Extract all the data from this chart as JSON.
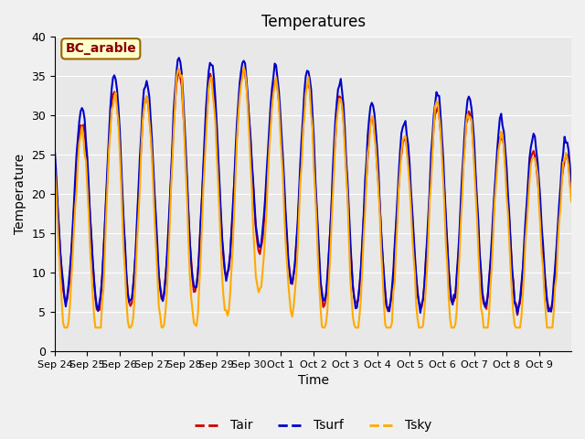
{
  "title": "Temperatures",
  "xlabel": "Time",
  "ylabel": "Temperature",
  "annotation_text": "BC_arable",
  "annotation_facecolor": "#ffffcc",
  "annotation_edgecolor": "#996600",
  "annotation_textcolor": "#8b0000",
  "line_colors": {
    "Tair": "#cc0000",
    "Tsurf": "#0000cc",
    "Tsky": "#ffaa00"
  },
  "line_width": 1.5,
  "ylim": [
    0,
    40
  ],
  "bg_color": "#e8e8e8",
  "fig_color": "#f0f0f0",
  "x_tick_labels": [
    "Sep 24",
    "Sep 25",
    "Sep 26",
    "Sep 27",
    "Sep 28",
    "Sep 29",
    "Sep 30",
    "Oct 1",
    "Oct 2",
    "Oct 3",
    "Oct 4",
    "Oct 5",
    "Oct 6",
    "Oct 7",
    "Oct 8",
    "Oct 9"
  ],
  "y_tick_vals": [
    0,
    5,
    10,
    15,
    20,
    25,
    30,
    35,
    40
  ],
  "legend_labels": [
    "Tair",
    "Tsurf",
    "Tsky"
  ],
  "legend_colors": [
    "#cc0000",
    "#0000cc",
    "#ffaa00"
  ]
}
